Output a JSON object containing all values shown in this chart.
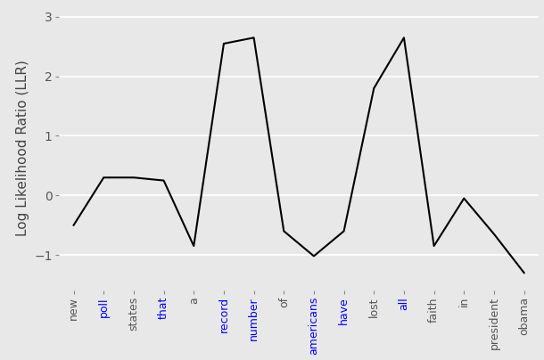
{
  "words": [
    "new",
    "poll",
    "states",
    "that",
    "a",
    "record",
    "number",
    "of",
    "americans",
    "have",
    "lost",
    "all",
    "faith",
    "in",
    "president",
    "obama"
  ],
  "llr_values": [
    -0.5,
    0.3,
    0.3,
    0.25,
    -0.85,
    2.55,
    2.65,
    -0.6,
    -1.02,
    -0.6,
    1.8,
    2.65,
    -0.85,
    -0.05,
    -0.65,
    -1.3
  ],
  "word_colors": [
    "#555555",
    "#0000ff",
    "#555555",
    "#0000ff",
    "#555555",
    "#0000ff",
    "#0000ff",
    "#555555",
    "#0000ff",
    "#0000ff",
    "#555555",
    "#0000ff",
    "#555555",
    "#555555",
    "#555555",
    "#555555"
  ],
  "ylabel": "Log Likelihood Ratio (LLR)",
  "line_color": "black",
  "line_width": 1.5,
  "bg_color": "#e8e8e8",
  "grid_color": "white",
  "yticks": [
    -1,
    0,
    1,
    2,
    3
  ],
  "ylim": [
    -1.6,
    3.2
  ],
  "tick_label_color": "#555555",
  "tick_label_fontsize": 10,
  "xlabel_fontsize": 9,
  "ylabel_fontsize": 11
}
